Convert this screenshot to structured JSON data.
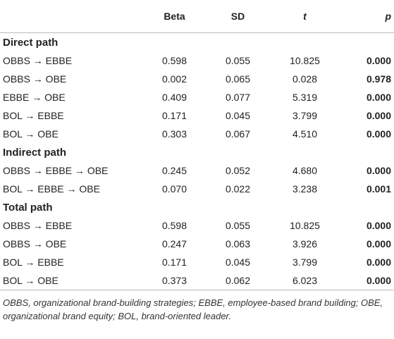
{
  "table": {
    "header": [
      "Beta",
      "SD",
      "t",
      "p"
    ],
    "sections": [
      {
        "title": "Direct path",
        "rows": [
          [
            "OBBS → EBBE",
            "0.598",
            "0.055",
            "10.825",
            "0.000"
          ],
          [
            "OBBS → OBE",
            "0.002",
            "0.065",
            "0.028",
            "0.978"
          ],
          [
            "EBBE → OBE",
            "0.409",
            "0.077",
            "5.319",
            "0.000"
          ],
          [
            "BOL → EBBE",
            "0.171",
            "0.045",
            "3.799",
            "0.000"
          ],
          [
            "BOL → OBE",
            "0.303",
            "0.067",
            "4.510",
            "0.000"
          ]
        ]
      },
      {
        "title": "Indirect path",
        "rows": [
          [
            "OBBS → EBBE → OBE",
            "0.245",
            "0.052",
            "4.680",
            "0.000"
          ],
          [
            "BOL → EBBE → OBE",
            "0.070",
            "0.022",
            "3.238",
            "0.001"
          ]
        ]
      },
      {
        "title": "Total path",
        "rows": [
          [
            "OBBS → EBBE",
            "0.598",
            "0.055",
            "10.825",
            "0.000"
          ],
          [
            "OBBS → OBE",
            "0.247",
            "0.063",
            "3.926",
            "0.000"
          ],
          [
            "BOL → EBBE",
            "0.171",
            "0.045",
            "3.799",
            "0.000"
          ],
          [
            "BOL → OBE",
            "0.373",
            "0.062",
            "6.023",
            "0.000"
          ]
        ]
      }
    ],
    "footnote": "OBBS, organizational brand-building strategies; EBBE, employee-based brand building; OBE, organizational brand equity; BOL, brand-oriented leader."
  }
}
